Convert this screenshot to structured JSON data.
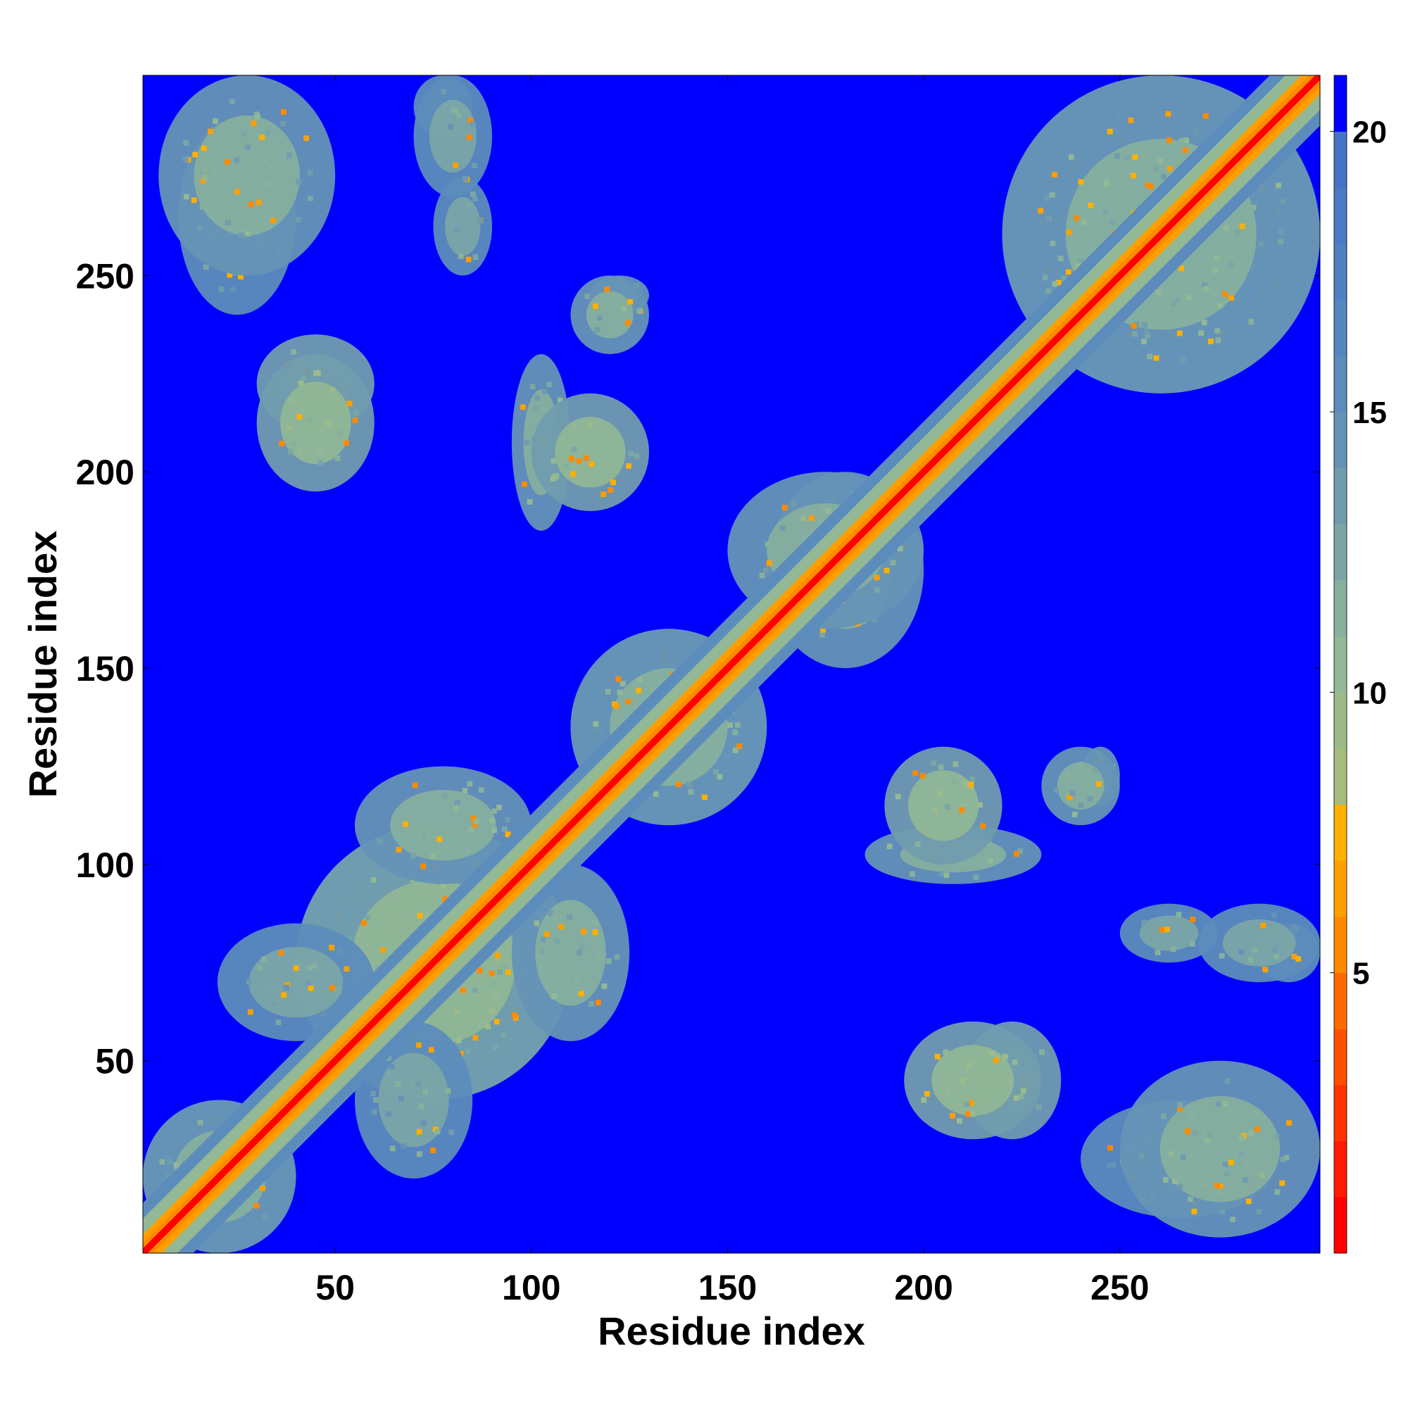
{
  "chart_data": {
    "type": "heatmap",
    "title": "",
    "xlabel": "Residue index",
    "ylabel": "Residue index",
    "xlim": [
      1,
      301
    ],
    "ylim": [
      1,
      301
    ],
    "x_ticks": [
      50,
      100,
      150,
      200,
      250
    ],
    "y_ticks": [
      50,
      100,
      150,
      200,
      250
    ],
    "colorbar": {
      "ticks": [
        5,
        10,
        15,
        20
      ],
      "range": [
        0,
        21
      ],
      "levels": [
        {
          "value": 1,
          "color": "#ff0000"
        },
        {
          "value": 2,
          "color": "#ff1a00"
        },
        {
          "value": 3,
          "color": "#ff3300"
        },
        {
          "value": 4,
          "color": "#ff5000"
        },
        {
          "value": 5,
          "color": "#ff6a00"
        },
        {
          "value": 6,
          "color": "#ff8a00"
        },
        {
          "value": 7,
          "color": "#ffa000"
        },
        {
          "value": 8,
          "color": "#ffb000"
        },
        {
          "value": 9,
          "color": "#a6bc7c"
        },
        {
          "value": 10,
          "color": "#9dbb8a"
        },
        {
          "value": 11,
          "color": "#92b895"
        },
        {
          "value": 12,
          "color": "#87b09d"
        },
        {
          "value": 13,
          "color": "#7ca6a6"
        },
        {
          "value": 14,
          "color": "#709cae"
        },
        {
          "value": 15,
          "color": "#6593b6"
        },
        {
          "value": 16,
          "color": "#5c8cbb"
        },
        {
          "value": 17,
          "color": "#5586be"
        },
        {
          "value": 18,
          "color": "#4f80c1"
        },
        {
          "value": 19,
          "color": "#4a7ac3"
        },
        {
          "value": 20,
          "color": "#4673c6"
        },
        {
          "value": 21,
          "color": "#0000ff"
        }
      ]
    },
    "diagonal": {
      "value_min": 1,
      "value_max": 6,
      "band_width_residues": 8
    },
    "clusters": [
      {
        "i": [
          1,
          40
        ],
        "j": [
          1,
          40
        ],
        "value": 12
      },
      {
        "i": [
          40,
          110
        ],
        "j": [
          40,
          110
        ],
        "value": 11
      },
      {
        "i": [
          55,
          100
        ],
        "j": [
          95,
          125
        ],
        "value": 12
      },
      {
        "i": [
          20,
          60
        ],
        "j": [
          55,
          85
        ],
        "value": 13
      },
      {
        "i": [
          110,
          160
        ],
        "j": [
          110,
          160
        ],
        "value": 12
      },
      {
        "i": [
          185,
          230
        ],
        "j": [
          95,
          110
        ],
        "value": 12
      },
      {
        "i": [
          240,
          250
        ],
        "j": [
          115,
          130
        ],
        "value": 12
      },
      {
        "i": [
          210,
          235
        ],
        "j": [
          30,
          60
        ],
        "value": 11
      },
      {
        "i": [
          240,
          290
        ],
        "j": [
          10,
          40
        ],
        "value": 13
      },
      {
        "i": [
          250,
          275
        ],
        "j": [
          75,
          90
        ],
        "value": 13
      },
      {
        "i": [
          285,
          301
        ],
        "j": [
          70,
          85
        ],
        "value": 13
      },
      {
        "i": [
          160,
          200
        ],
        "j": [
          150,
          200
        ],
        "value": 12
      },
      {
        "i": [
          220,
          301
        ],
        "j": [
          220,
          301
        ],
        "value": 12
      },
      {
        "i": [
          30,
          60
        ],
        "j": [
          195,
          230
        ],
        "value": 11
      },
      {
        "i": [
          5,
          50
        ],
        "j": [
          250,
          301
        ],
        "value": 12
      },
      {
        "i": [
          100,
          130
        ],
        "j": [
          190,
          220
        ],
        "value": 11
      },
      {
        "i": [
          110,
          130
        ],
        "j": [
          230,
          250
        ],
        "value": 12
      },
      {
        "i": [
          70,
          90
        ],
        "j": [
          270,
          301
        ],
        "value": 13
      }
    ]
  }
}
